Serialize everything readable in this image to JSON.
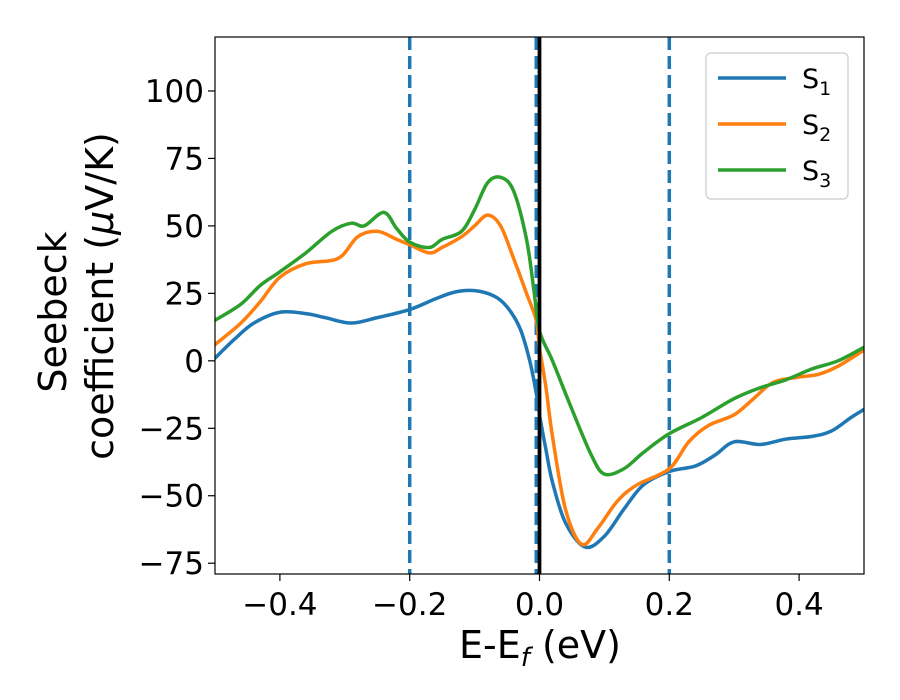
{
  "chart_data": {
    "type": "line",
    "xlabel": {
      "main": "E-E",
      "sub": "f",
      "unit": " (eV)"
    },
    "ylabel": {
      "line1": "Seebeck",
      "line2_prefix": "coefficient  (",
      "mu": "μ",
      "line2_suffix": "V/K)"
    },
    "xlim": [
      -0.5,
      0.5
    ],
    "ylim": [
      -79,
      120
    ],
    "xticks": [
      -0.4,
      -0.2,
      0.0,
      0.2,
      0.4
    ],
    "xtick_labels": [
      "−0.4",
      "−0.2",
      "0.0",
      "0.2",
      "0.4"
    ],
    "yticks": [
      -75,
      -50,
      -25,
      0,
      25,
      50,
      75,
      100
    ],
    "ytick_labels": [
      "−75",
      "−50",
      "−25",
      "0",
      "25",
      "50",
      "75",
      "100"
    ],
    "grid": false,
    "legend_position": "top-right",
    "vlines": [
      {
        "x": -0.2,
        "style": "dashed",
        "color": "#1f77b4"
      },
      {
        "x": -0.005,
        "style": "dashed",
        "color": "#1f77b4"
      },
      {
        "x": 0.2,
        "style": "dashed",
        "color": "#1f77b4"
      },
      {
        "x": 0.0,
        "style": "solid",
        "color": "#000000"
      }
    ],
    "series": [
      {
        "name": "S",
        "sub": "1",
        "color": "#1f77b4",
        "points": [
          [
            -0.5,
            1
          ],
          [
            -0.47,
            8
          ],
          [
            -0.44,
            14
          ],
          [
            -0.4,
            18
          ],
          [
            -0.36,
            17.5
          ],
          [
            -0.33,
            16
          ],
          [
            -0.29,
            14
          ],
          [
            -0.25,
            16
          ],
          [
            -0.2,
            19
          ],
          [
            -0.16,
            23
          ],
          [
            -0.13,
            25.5
          ],
          [
            -0.1,
            26
          ],
          [
            -0.07,
            24
          ],
          [
            -0.05,
            20
          ],
          [
            -0.03,
            12
          ],
          [
            -0.015,
            0
          ],
          [
            -0.005,
            -12
          ],
          [
            0.0,
            -20
          ],
          [
            0.01,
            -33
          ],
          [
            0.02,
            -45
          ],
          [
            0.04,
            -60
          ],
          [
            0.07,
            -69
          ],
          [
            0.1,
            -65
          ],
          [
            0.13,
            -55
          ],
          [
            0.16,
            -46
          ],
          [
            0.2,
            -41
          ],
          [
            0.24,
            -39
          ],
          [
            0.27,
            -35
          ],
          [
            0.3,
            -30
          ],
          [
            0.34,
            -31
          ],
          [
            0.38,
            -29
          ],
          [
            0.42,
            -28
          ],
          [
            0.45,
            -26
          ],
          [
            0.48,
            -21
          ],
          [
            0.5,
            -18
          ]
        ]
      },
      {
        "name": "S",
        "sub": "2",
        "color": "#ff7f0e",
        "points": [
          [
            -0.5,
            6
          ],
          [
            -0.46,
            14
          ],
          [
            -0.43,
            22
          ],
          [
            -0.4,
            31
          ],
          [
            -0.36,
            36
          ],
          [
            -0.31,
            38
          ],
          [
            -0.28,
            46
          ],
          [
            -0.25,
            48
          ],
          [
            -0.22,
            45
          ],
          [
            -0.2,
            43
          ],
          [
            -0.17,
            40
          ],
          [
            -0.15,
            42
          ],
          [
            -0.12,
            46
          ],
          [
            -0.1,
            50
          ],
          [
            -0.08,
            54
          ],
          [
            -0.06,
            50
          ],
          [
            -0.04,
            38
          ],
          [
            -0.02,
            25
          ],
          [
            -0.005,
            15
          ],
          [
            0.0,
            5
          ],
          [
            0.01,
            -10
          ],
          [
            0.02,
            -28
          ],
          [
            0.04,
            -55
          ],
          [
            0.065,
            -68
          ],
          [
            0.09,
            -62
          ],
          [
            0.12,
            -52
          ],
          [
            0.15,
            -46
          ],
          [
            0.2,
            -40
          ],
          [
            0.23,
            -30
          ],
          [
            0.26,
            -24
          ],
          [
            0.3,
            -20
          ],
          [
            0.33,
            -14
          ],
          [
            0.36,
            -8
          ],
          [
            0.4,
            -6
          ],
          [
            0.43,
            -5
          ],
          [
            0.46,
            -2
          ],
          [
            0.5,
            4
          ]
        ]
      },
      {
        "name": "S",
        "sub": "3",
        "color": "#2ca02c",
        "points": [
          [
            -0.5,
            15
          ],
          [
            -0.46,
            21
          ],
          [
            -0.43,
            28
          ],
          [
            -0.4,
            33
          ],
          [
            -0.36,
            40
          ],
          [
            -0.32,
            48
          ],
          [
            -0.29,
            51
          ],
          [
            -0.27,
            50
          ],
          [
            -0.24,
            55
          ],
          [
            -0.22,
            49
          ],
          [
            -0.2,
            44
          ],
          [
            -0.17,
            42
          ],
          [
            -0.15,
            45
          ],
          [
            -0.12,
            48
          ],
          [
            -0.1,
            56
          ],
          [
            -0.08,
            66
          ],
          [
            -0.06,
            68
          ],
          [
            -0.04,
            63
          ],
          [
            -0.02,
            45
          ],
          [
            -0.008,
            25
          ],
          [
            0.0,
            11
          ],
          [
            0.02,
            0
          ],
          [
            0.05,
            -18
          ],
          [
            0.08,
            -35
          ],
          [
            0.1,
            -42
          ],
          [
            0.13,
            -40
          ],
          [
            0.16,
            -34
          ],
          [
            0.2,
            -27
          ],
          [
            0.25,
            -21
          ],
          [
            0.3,
            -14
          ],
          [
            0.34,
            -10
          ],
          [
            0.38,
            -7
          ],
          [
            0.42,
            -3
          ],
          [
            0.46,
            0
          ],
          [
            0.5,
            5
          ]
        ]
      }
    ]
  }
}
